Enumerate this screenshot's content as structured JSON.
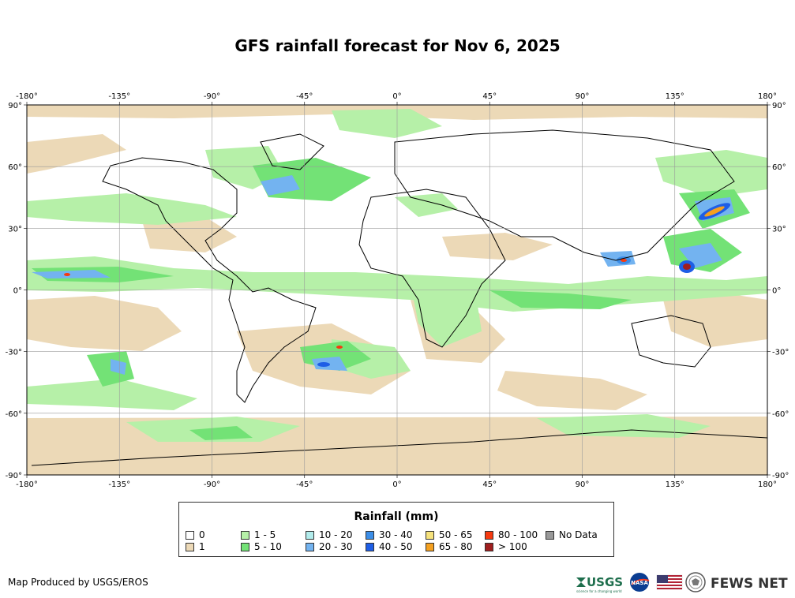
{
  "title": "GFS rainfall forecast for Nov 6, 2025",
  "axes": {
    "lon_ticks": [
      "-180°",
      "-135°",
      "-90°",
      "-45°",
      "0°",
      "45°",
      "90°",
      "135°",
      "180°"
    ],
    "lat_ticks": [
      "90°",
      "60°",
      "30°",
      "0°",
      "-30°",
      "-60°",
      "-90°"
    ]
  },
  "legend": {
    "title": "Rainfall (mm)",
    "items": [
      {
        "label": "0",
        "color": "#ffffff"
      },
      {
        "label": "1",
        "color": "#ecd9b7"
      },
      {
        "label": "1 - 5",
        "color": "#b6f0a8"
      },
      {
        "label": "5 - 10",
        "color": "#73e276"
      },
      {
        "label": "10 - 20",
        "color": "#b2ecec"
      },
      {
        "label": "20 - 30",
        "color": "#73b3f0"
      },
      {
        "label": "30 - 40",
        "color": "#3c8ee8"
      },
      {
        "label": "40 - 50",
        "color": "#1e5ee6"
      },
      {
        "label": "50 - 65",
        "color": "#f6e27c"
      },
      {
        "label": "65 - 80",
        "color": "#f4a020"
      },
      {
        "label": "80 - 100",
        "color": "#f63a10"
      },
      {
        "label": "> 100",
        "color": "#a01e1e"
      },
      {
        "label": "No Data",
        "color": "#999999"
      }
    ]
  },
  "credit": "Map Produced by USGS/EROS",
  "logos": {
    "usgs": "USGS",
    "usgs_tagline": "science for a changing world",
    "nasa": "NASA",
    "fews": "FEWS NET"
  }
}
